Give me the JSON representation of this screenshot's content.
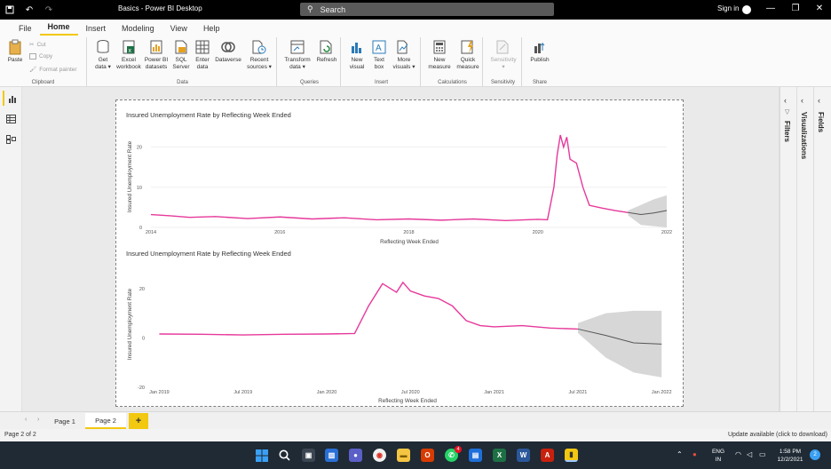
{
  "window": {
    "title": "Basics - Power BI Desktop",
    "search_placeholder": "Search",
    "signin": "Sign in"
  },
  "menu": {
    "tabs": [
      "File",
      "Home",
      "Insert",
      "Modeling",
      "View",
      "Help"
    ],
    "active": "Home"
  },
  "ribbon": {
    "clipboard": {
      "label": "Clipboard",
      "paste": "Paste",
      "cut": "Cut",
      "copy": "Copy",
      "format_painter": "Format painter"
    },
    "data": {
      "label": "Data",
      "get_data": [
        "Get",
        "data ▾"
      ],
      "excel": [
        "Excel",
        "workbook"
      ],
      "powerbi": [
        "Power BI",
        "datasets"
      ],
      "sql": [
        "SQL",
        "Server"
      ],
      "enter": [
        "Enter",
        "data"
      ],
      "dataverse": [
        "Dataverse",
        ""
      ],
      "recent": [
        "Recent",
        "sources ▾"
      ]
    },
    "queries": {
      "label": "Queries",
      "transform": [
        "Transform",
        "data ▾"
      ],
      "refresh": [
        "Refresh",
        ""
      ]
    },
    "insert": {
      "label": "Insert",
      "new_visual": [
        "New",
        "visual"
      ],
      "text_box": [
        "Text",
        "box"
      ],
      "more_visuals": [
        "More",
        "visuals ▾"
      ]
    },
    "calculations": {
      "label": "Calculations",
      "new_measure": [
        "New",
        "measure"
      ],
      "quick_measure": [
        "Quick",
        "measure"
      ]
    },
    "sensitivity": {
      "label": "Sensitivity",
      "sensitivity": [
        "Sensitivity",
        "▾"
      ]
    },
    "share": {
      "label": "Share",
      "publish": [
        "Publish",
        ""
      ]
    }
  },
  "panes": {
    "filters": "Filters",
    "visualizations": "Visualizations",
    "fields": "Fields"
  },
  "page_tabs": [
    "Page 1",
    "Page 2"
  ],
  "active_page": "Page 2",
  "add_page": "+",
  "status": {
    "left": "Page 2 of 2",
    "right": "Update available (click to download)"
  },
  "taskbar": {
    "lang": "ENG",
    "region": "IN",
    "time": "1:58 PM",
    "date": "12/2/2021",
    "badge": "4",
    "notif": "2"
  },
  "chart_data": [
    {
      "type": "line",
      "title": "Insured Unemployment Rate by Reflecting Week Ended",
      "xlabel": "Reflecting Week Ended",
      "ylabel": "Insured Unemployment Rate",
      "x_ticks": [
        "2014",
        "2016",
        "2018",
        "2020",
        "2022"
      ],
      "y_ticks": [
        0,
        10,
        20
      ],
      "ylim": [
        0,
        25
      ],
      "xlim": [
        2014,
        2022
      ],
      "grid": true,
      "series": [
        {
          "color": "#e6399b",
          "x": [
            2014.0,
            2014.3,
            2014.6,
            2015.0,
            2015.5,
            2016.0,
            2016.5,
            2017.0,
            2017.5,
            2018.0,
            2018.5,
            2019.0,
            2019.5,
            2020.0,
            2020.15,
            2020.25,
            2020.3,
            2020.35,
            2020.4,
            2020.45,
            2020.5,
            2020.6,
            2020.7,
            2020.8,
            2021.0,
            2021.2,
            2021.4
          ],
          "y": [
            3.2,
            2.9,
            2.5,
            2.7,
            2.2,
            2.6,
            2.1,
            2.4,
            1.9,
            2.1,
            1.8,
            2.1,
            1.7,
            2.0,
            1.9,
            10.0,
            18.0,
            23.0,
            20.0,
            22.5,
            17.0,
            16.0,
            10.0,
            5.5,
            4.8,
            4.2,
            3.7
          ]
        },
        {
          "name": "forecast",
          "color": "#555555",
          "x": [
            2021.4,
            2021.6,
            2021.8,
            2022.0
          ],
          "y": [
            3.7,
            3.2,
            3.6,
            4.2
          ],
          "band_lower": [
            3.0,
            0.6,
            0.3,
            0.0
          ],
          "band_upper": [
            4.2,
            5.6,
            7.0,
            8.0
          ]
        }
      ]
    },
    {
      "type": "line",
      "title": "Insured Unemployment Rate by Reflecting Week Ended",
      "xlabel": "Reflecting Week Ended",
      "ylabel": "Insured Unemployment Rate",
      "x_ticks": [
        "Jan 2019",
        "Jul 2019",
        "Jan 2020",
        "Jul 2020",
        "Jan 2021",
        "Jul 2021",
        "Jan 2022"
      ],
      "y_ticks": [
        -20,
        0,
        20
      ],
      "ylim": [
        -20,
        25
      ],
      "grid": false,
      "series": [
        {
          "color": "#e6399b",
          "x": [
            "2019-01",
            "2019-04",
            "2019-07",
            "2019-10",
            "2020-01",
            "2020-03",
            "2020-04",
            "2020-05",
            "2020-06",
            "2020-06-15",
            "2020-07",
            "2020-08",
            "2020-09",
            "2020-10",
            "2020-11",
            "2020-12",
            "2021-01",
            "2021-03",
            "2021-05",
            "2021-07"
          ],
          "y": [
            1.6,
            1.5,
            1.2,
            1.5,
            1.6,
            1.8,
            13,
            22,
            18.5,
            22.5,
            19,
            17,
            16,
            13,
            7,
            5,
            4.5,
            5,
            4,
            3.6
          ]
        },
        {
          "name": "forecast",
          "color": "#555555",
          "x": [
            "2021-07",
            "2021-09",
            "2021-11",
            "2022-01"
          ],
          "y": [
            3.6,
            1,
            -2,
            -2.5
          ],
          "band_lower": [
            2.0,
            -8,
            -14,
            -16
          ],
          "band_upper": [
            6.0,
            10,
            11,
            11
          ]
        }
      ]
    }
  ]
}
